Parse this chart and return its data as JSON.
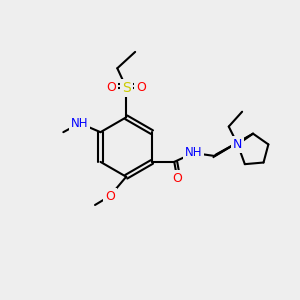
{
  "bg_color": "#eeeeee",
  "atom_colors": {
    "C": "#000000",
    "N": "#0000ff",
    "O": "#ff0000",
    "S": "#cccc00",
    "H": "#888888"
  },
  "bond_color": "#000000",
  "bond_width": 1.5,
  "font_size": 9
}
